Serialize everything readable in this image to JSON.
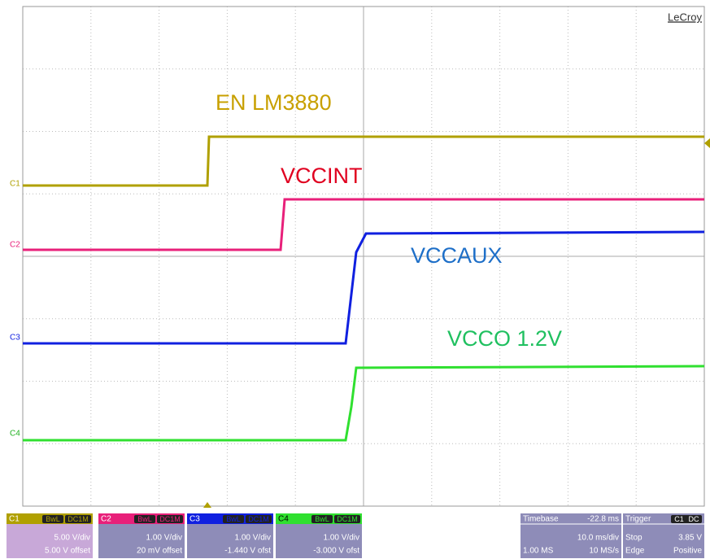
{
  "brand": "LeCroy",
  "traces": [
    {
      "label": "C1",
      "name": "EN LM3880"
    },
    {
      "label": "C2",
      "name": "VCCINT"
    },
    {
      "label": "C3",
      "name": "VCCAUX"
    },
    {
      "label": "C4",
      "name": "VCCO 1.2V"
    }
  ],
  "channels": [
    {
      "label": "C1",
      "bw": "BwL",
      "coupling": "DC1M",
      "vdiv": "5.00 V/div",
      "offset": "5.00 V offset"
    },
    {
      "label": "C2",
      "bw": "BwL",
      "coupling": "DC1M",
      "vdiv": "1.00 V/div",
      "offset": "20 mV offset"
    },
    {
      "label": "C3",
      "bw": "BwL",
      "coupling": "DC1M",
      "vdiv": "1.00 V/div",
      "offset": "-1.440 V ofst"
    },
    {
      "label": "C4",
      "bw": "BwL",
      "coupling": "DC1M",
      "vdiv": "1.00 V/div",
      "offset": "-3.000 V ofst"
    }
  ],
  "timebase": {
    "title": "Timebase",
    "delay": "-22.8 ms",
    "tdiv": "10.0 ms/div",
    "points": "1.00 MS",
    "rate": "10 MS/s"
  },
  "trigger": {
    "title": "Trigger",
    "source": "C1",
    "coupling": "DC",
    "mode": "Stop",
    "level": "3.85 V",
    "type": "Edge",
    "slope": "Positive"
  }
}
